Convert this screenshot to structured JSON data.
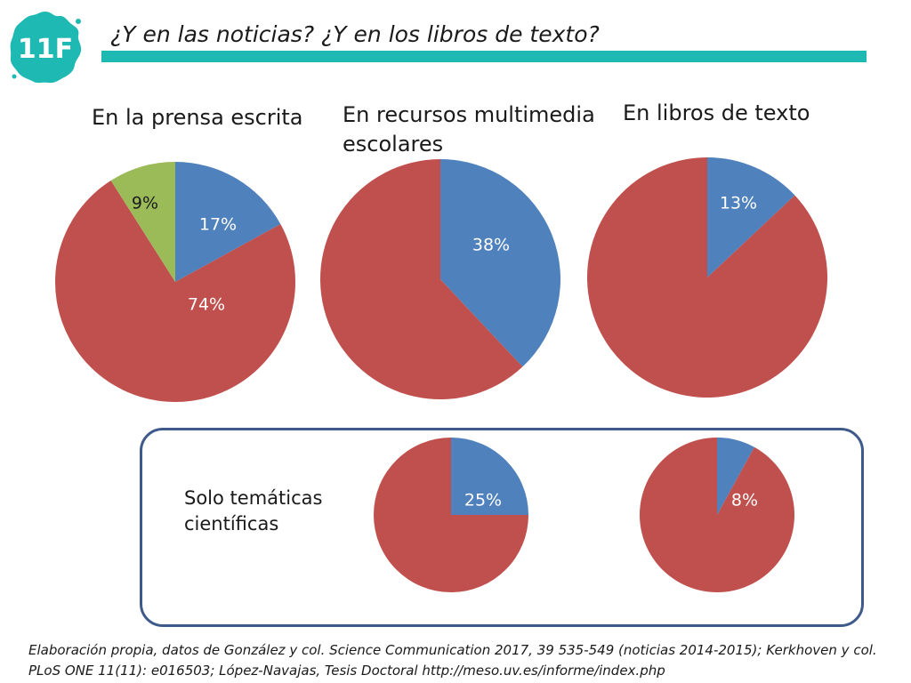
{
  "logo": {
    "text": "11F",
    "icon": "splash-logo",
    "color": "#1eb9b3"
  },
  "header": {
    "title": "¿Y en las noticias? ¿Y en los libros de texto?",
    "rule_color": "#1eb9b3"
  },
  "headings": [
    "En la prensa escrita",
    "En recursos multimedia escolares",
    "En libros de texto"
  ],
  "scientific_label": "Solo temáticas científicas",
  "source_note": "Elaboración propia, datos de González y col. Science Communication 2017, 39 535-549 (noticias 2014-2015); Kerkhoven y col. PLoS ONE 11(11): e016503; López-Navajas, Tesis Doctoral  http://meso.uv.es/informe/index.php",
  "colors": {
    "blue": "#4f81bd",
    "red": "#c0504d",
    "green": "#9bbb59",
    "label_on_color": "#ffffff",
    "label_on_green": "#1a1a1a",
    "box_border": "#3d5a8a"
  },
  "chart_data": [
    {
      "type": "pie",
      "title": "En la prensa escrita",
      "slices": [
        {
          "value": 17,
          "label": "17%",
          "color": "#4f81bd"
        },
        {
          "value": 74,
          "label": "74%",
          "color": "#c0504d"
        },
        {
          "value": 9,
          "label": "9%",
          "color": "#9bbb59"
        }
      ]
    },
    {
      "type": "pie",
      "title": "En recursos multimedia escolares",
      "slices": [
        {
          "value": 38,
          "label": "38%",
          "color": "#4f81bd"
        },
        {
          "value": 62,
          "label": "",
          "color": "#c0504d"
        }
      ]
    },
    {
      "type": "pie",
      "title": "En libros de texto",
      "slices": [
        {
          "value": 13,
          "label": "13%",
          "color": "#4f81bd"
        },
        {
          "value": 87,
          "label": "",
          "color": "#c0504d"
        }
      ]
    },
    {
      "type": "pie",
      "title": "Solo temáticas científicas",
      "slices": [
        {
          "value": 25,
          "label": "25%",
          "color": "#4f81bd"
        },
        {
          "value": 75,
          "label": "",
          "color": "#c0504d"
        }
      ]
    },
    {
      "type": "pie",
      "title": "Solo temáticas científicas",
      "slices": [
        {
          "value": 8,
          "label": "8%",
          "color": "#4f81bd"
        },
        {
          "value": 92,
          "label": "",
          "color": "#c0504d"
        }
      ]
    }
  ]
}
